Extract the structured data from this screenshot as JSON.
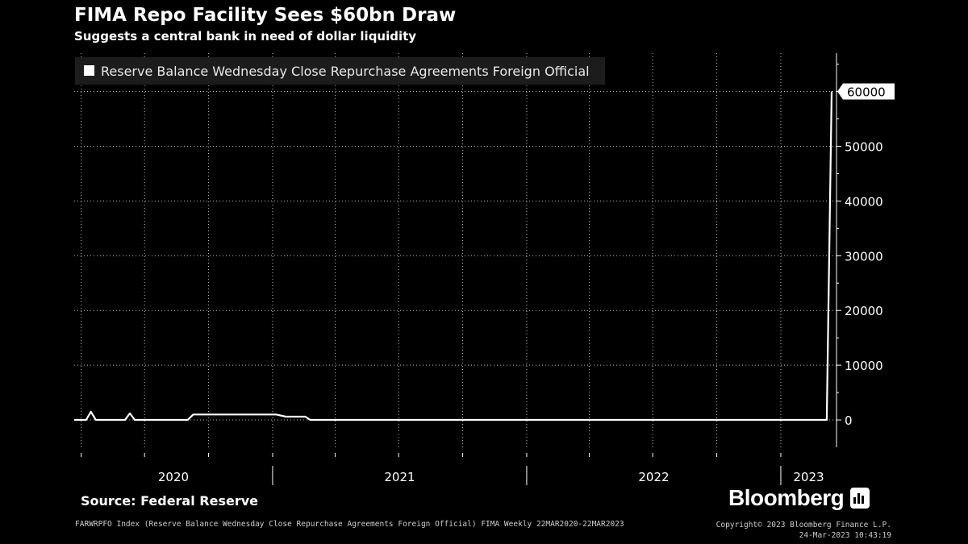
{
  "header": {
    "title": "FIMA Repo Facility Sees $60bn Draw",
    "subtitle": "Suggests a central bank in need of dollar liquidity"
  },
  "footer": {
    "source": "Source: Federal Reserve",
    "brand": "Bloomberg",
    "footnote": "FARWRPFO Index (Reserve Balance Wednesday Close Repurchase Agreements Foreign Official) FIMA  Weekly 22MAR2020-22MAR2023",
    "copyright": "Copyright© 2023 Bloomberg Finance L.P.",
    "timestamp": "24-Mar-2023 10:43:19"
  },
  "chart_data": {
    "type": "line",
    "title": "FIMA Repo Facility Sees $60bn Draw",
    "subtitle": "Suggests a central bank in need of dollar liquidity",
    "series": [
      {
        "name": "Reserve Balance Wednesday Close Repurchase Agreements Foreign Official",
        "color": "#ffffff",
        "points": [
          [
            "2020-03-22",
            0
          ],
          [
            "2020-04-08",
            0
          ],
          [
            "2020-04-15",
            1500
          ],
          [
            "2020-04-22",
            0
          ],
          [
            "2020-06-03",
            0
          ],
          [
            "2020-06-10",
            1200
          ],
          [
            "2020-06-17",
            0
          ],
          [
            "2020-09-01",
            0
          ],
          [
            "2020-09-09",
            1000
          ],
          [
            "2021-01-06",
            1000
          ],
          [
            "2021-01-20",
            600
          ],
          [
            "2021-02-17",
            600
          ],
          [
            "2021-02-24",
            0
          ],
          [
            "2023-03-08",
            0
          ],
          [
            "2023-03-15",
            60000
          ]
        ],
        "last_value_label": "60000"
      }
    ],
    "legend": {
      "position": "top-left"
    },
    "x_axis": {
      "range": [
        "2020-03-22",
        "2023-03-22"
      ],
      "tick_labels": [
        "2020",
        "2021",
        "2022",
        "2023"
      ]
    },
    "y_axis": {
      "position": "right",
      "range": [
        -5000,
        67000
      ],
      "ticks": [
        0,
        10000,
        20000,
        30000,
        40000,
        50000,
        60000
      ],
      "tick_labels": [
        "0",
        "10000",
        "20000",
        "30000",
        "40000",
        "50000"
      ]
    },
    "grid": true
  }
}
